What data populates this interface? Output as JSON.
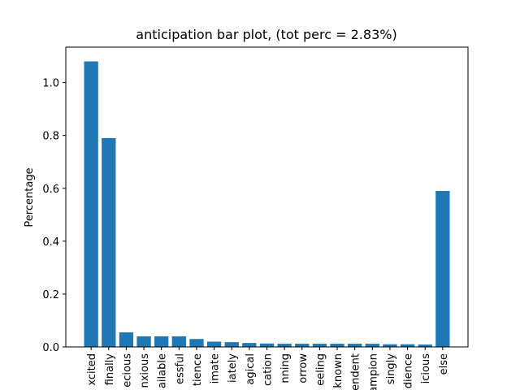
{
  "chart_data": {
    "type": "bar",
    "title": "anticipation bar plot, (tot perc = 2.83%)",
    "y_label": "Percentage",
    "categories": [
      "xcited",
      "finally",
      "ecious",
      "nxious",
      "ailable",
      "essful",
      "tience",
      "imate",
      "iately",
      "agical",
      "cation",
      "nning",
      "orrow",
      "eeling",
      "known",
      "endent",
      "ampion",
      "singly",
      "dience",
      "icious",
      "else"
    ],
    "values": [
      1.08,
      0.79,
      0.055,
      0.04,
      0.04,
      0.04,
      0.03,
      0.02,
      0.018,
      0.015,
      0.013,
      0.012,
      0.012,
      0.012,
      0.012,
      0.012,
      0.012,
      0.01,
      0.01,
      0.009,
      0.59
    ],
    "color": "#1f77b4",
    "ylim": [
      0,
      1.134
    ],
    "yticks": [
      {
        "value": 0,
        "label": "0.0"
      },
      0.2,
      0.4,
      0.6,
      0.8,
      {
        "value": 1,
        "label": "1.0"
      }
    ],
    "grid": false
  }
}
